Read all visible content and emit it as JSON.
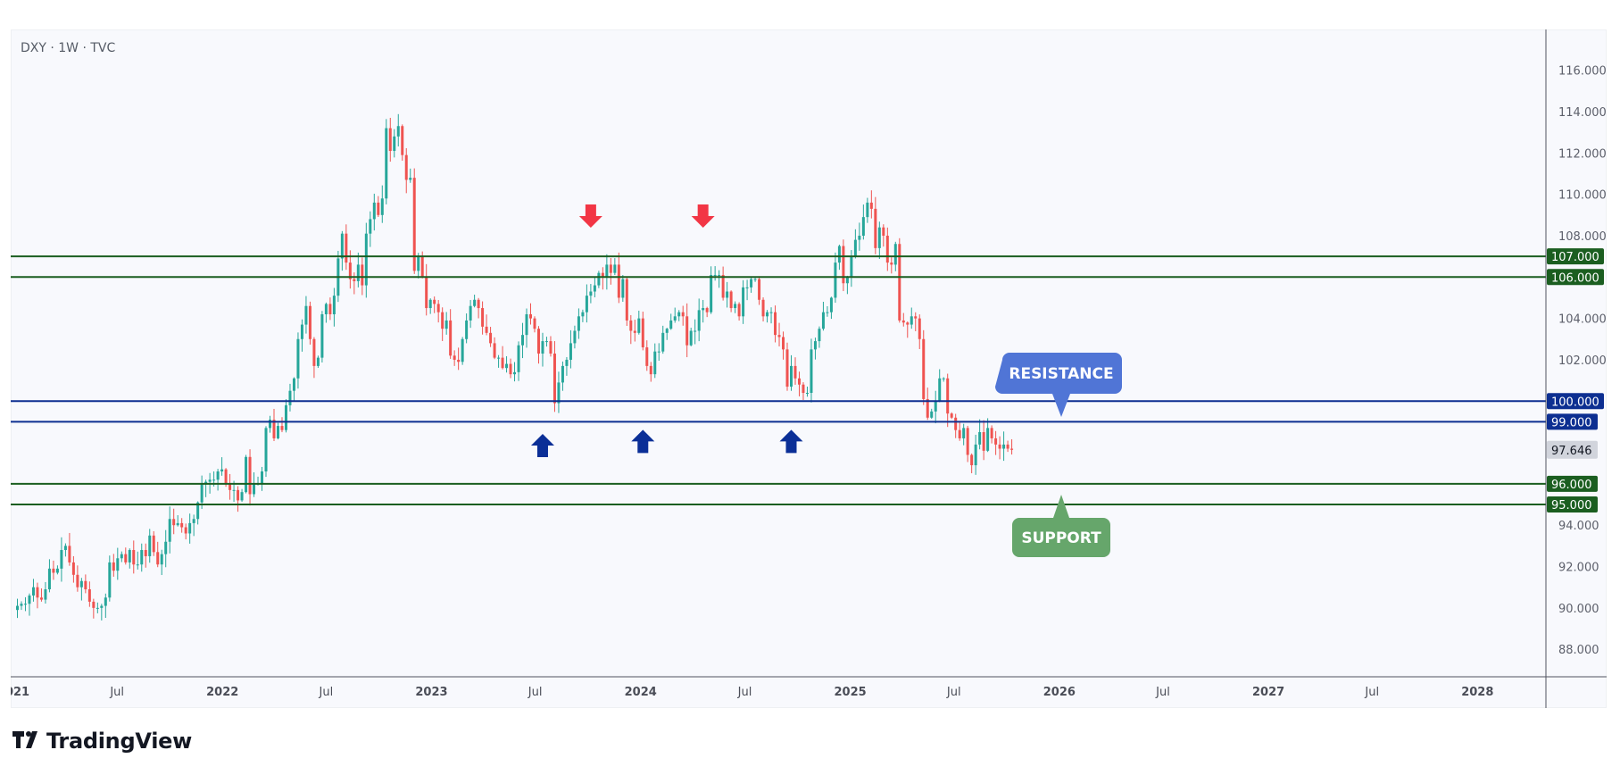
{
  "header": {
    "symbol_line": "DXY · 1W · TVC"
  },
  "brand": {
    "name": "TradingView",
    "logo_text": "TV"
  },
  "colors": {
    "up": "#26a69a",
    "down": "#ef5350",
    "support_line": "#1b5e20",
    "resistance_line": "#0d2f91",
    "resistance_box": "#5075d6",
    "support_box": "#66a66b",
    "red_arrow": "#f23645",
    "blue_arrow": "#0b2f97",
    "last_price_bg": "#d1d4dc"
  },
  "chart_data": {
    "type": "candlestick",
    "symbol": "DXY",
    "interval": "1W",
    "source": "TVC",
    "ylim": [
      86.5,
      117.5
    ],
    "y_ticks": [
      "88.000",
      "90.000",
      "92.000",
      "94.000",
      "96.000",
      "98.000",
      "100.000",
      "102.000",
      "104.000",
      "106.000",
      "108.000",
      "110.000",
      "112.000",
      "114.000",
      "116.000"
    ],
    "x_ticks": [
      {
        "label": "2021",
        "date": "2021-01-01",
        "year": true
      },
      {
        "label": "Jul",
        "date": "2021-07-01"
      },
      {
        "label": "2022",
        "date": "2022-01-01",
        "year": true
      },
      {
        "label": "Jul",
        "date": "2022-07-01"
      },
      {
        "label": "2023",
        "date": "2023-01-01",
        "year": true
      },
      {
        "label": "Jul",
        "date": "2023-07-01"
      },
      {
        "label": "2024",
        "date": "2024-01-01",
        "year": true
      },
      {
        "label": "Jul",
        "date": "2024-07-01"
      },
      {
        "label": "2025",
        "date": "2025-01-01",
        "year": true
      },
      {
        "label": "Jul",
        "date": "2025-07-01"
      },
      {
        "label": "2026",
        "date": "2026-01-01",
        "year": true
      },
      {
        "label": "Jul",
        "date": "2026-07-01"
      },
      {
        "label": "2027",
        "date": "2027-01-01",
        "year": true
      },
      {
        "label": "Jul",
        "date": "2027-07-01"
      },
      {
        "label": "2028",
        "date": "2028-01-01",
        "year": true
      }
    ],
    "start_week": "2021-01-08",
    "weekly_close": [
      90.1,
      90.2,
      90.2,
      90.6,
      91.0,
      90.5,
      90.4,
      90.9,
      91.9,
      91.7,
      91.9,
      92.8,
      93.0,
      92.2,
      91.6,
      91.0,
      91.3,
      90.9,
      90.3,
      90.0,
      90.0,
      90.1,
      90.5,
      92.2,
      91.8,
      92.4,
      92.6,
      92.2,
      92.8,
      92.1,
      92.1,
      92.8,
      92.5,
      93.5,
      92.7,
      92.1,
      92.6,
      93.2,
      94.3,
      94.0,
      94.1,
      93.9,
      93.6,
      94.1,
      94.3,
      95.1,
      96.0,
      96.1,
      96.2,
      96.2,
      96.6,
      96.7,
      96.0,
      95.7,
      95.7,
      95.2,
      95.6,
      97.3,
      95.5,
      96.0,
      96.0,
      96.6,
      98.7,
      99.1,
      98.2,
      98.8,
      98.6,
      99.8,
      100.5,
      101.1,
      103.0,
      103.7,
      104.6,
      103.0,
      101.7,
      102.1,
      104.2,
      104.7,
      104.2,
      105.1,
      106.9,
      108.1,
      106.7,
      105.9,
      105.8,
      106.6,
      105.6,
      108.1,
      108.8,
      109.6,
      109.0,
      109.8,
      113.2,
      112.1,
      112.8,
      113.3,
      111.9,
      110.7,
      110.8,
      106.3,
      107.0,
      106.0,
      104.5,
      104.9,
      104.7,
      104.3,
      103.5,
      103.9,
      102.2,
      102.0,
      101.9,
      103.0,
      103.9,
      104.6,
      104.9,
      104.5,
      103.6,
      103.3,
      102.8,
      102.1,
      102.1,
      101.6,
      101.8,
      101.3,
      101.4,
      102.7,
      103.2,
      104.2,
      104.0,
      103.5,
      102.3,
      102.9,
      102.9,
      102.3,
      99.9,
      100.9,
      101.7,
      102.0,
      102.8,
      103.4,
      104.1,
      104.3,
      105.1,
      105.3,
      105.6,
      106.2,
      106.0,
      106.6,
      106.2,
      106.6,
      105.0,
      105.9,
      103.9,
      103.4,
      103.3,
      104.0,
      102.6,
      101.7,
      101.3,
      102.4,
      102.4,
      103.3,
      103.5,
      103.9,
      104.1,
      104.3,
      104.1,
      102.7,
      103.4,
      103.4,
      104.4,
      104.5,
      104.3,
      106.1,
      106.1,
      106.1,
      105.0,
      105.3,
      104.5,
      104.7,
      104.1,
      105.5,
      105.5,
      105.9,
      105.9,
      104.9,
      104.1,
      104.3,
      104.3,
      103.2,
      103.1,
      102.5,
      100.7,
      101.7,
      101.1,
      100.8,
      100.4,
      100.4,
      102.5,
      102.9,
      103.5,
      104.3,
      104.3,
      105.0,
      106.7,
      107.5,
      105.7,
      106.0,
      107.0,
      107.8,
      108.0,
      108.9,
      109.6,
      109.3,
      107.4,
      108.4,
      108.0,
      106.7,
      106.6,
      107.6,
      103.9,
      103.8,
      103.7,
      104.1,
      104.0,
      103.0,
      100.1,
      99.2,
      99.5,
      100.0,
      101.1,
      101.1,
      99.4,
      99.2,
      98.6,
      98.2,
      98.7,
      97.4,
      96.9,
      97.9,
      98.5,
      97.6,
      98.7,
      98.2,
      97.9,
      97.7,
      97.9,
      97.7,
      97.646
    ],
    "last_price": "97.646",
    "levels": [
      {
        "price": 107,
        "label": "107.000",
        "kind": "support"
      },
      {
        "price": 106,
        "label": "106.000",
        "kind": "support"
      },
      {
        "price": 100,
        "label": "100.000",
        "kind": "resistance"
      },
      {
        "price": 99,
        "label": "99.000",
        "kind": "resistance"
      },
      {
        "price": 96,
        "label": "96.000",
        "kind": "support"
      },
      {
        "price": 95,
        "label": "95.000",
        "kind": "support"
      }
    ],
    "annotations": {
      "resistance_label": "RESISTANCE",
      "support_label": "SUPPORT"
    },
    "markers": [
      {
        "type": "down",
        "color": "red",
        "date": "2023-10-06",
        "price": 108.3
      },
      {
        "type": "down",
        "color": "red",
        "date": "2024-04-19",
        "price": 108.3
      },
      {
        "type": "up",
        "color": "blue",
        "date": "2023-07-14",
        "price": 98.5
      },
      {
        "type": "up",
        "color": "blue",
        "date": "2024-01-05",
        "price": 98.7
      },
      {
        "type": "up",
        "color": "blue",
        "date": "2024-09-20",
        "price": 98.7
      }
    ]
  }
}
